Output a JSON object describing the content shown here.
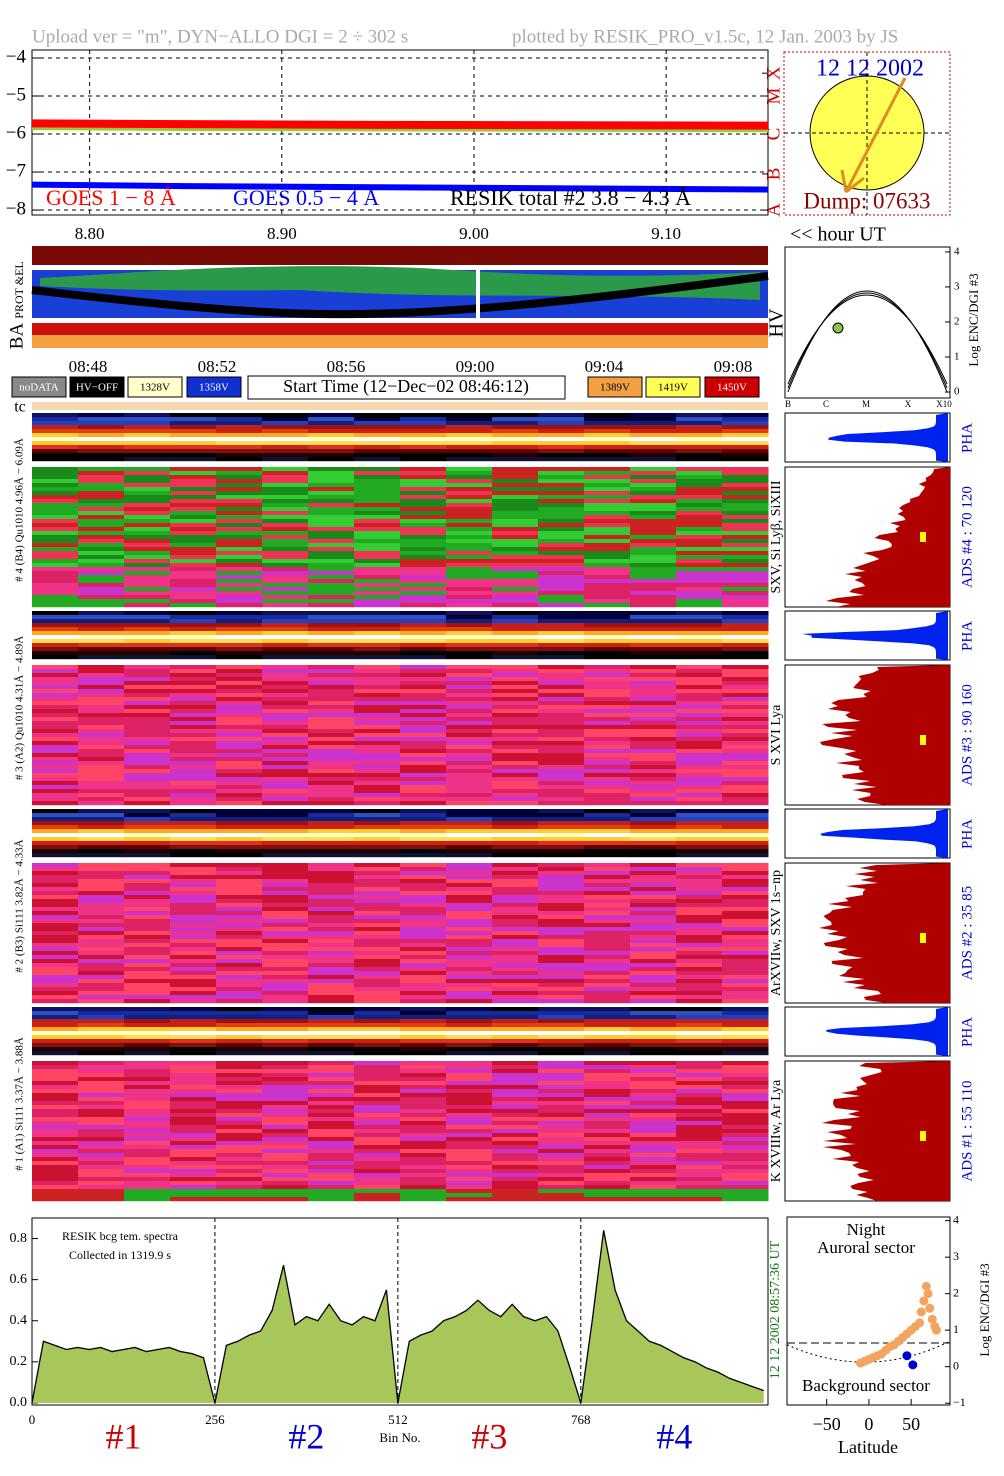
{
  "header": {
    "upload": "Upload ver = \"m\", DYN−ALLO DGI =   2 ÷ 302 s",
    "plotted": "plotted by RESIK_PRO_v1.5c, 12 Jan. 2003 by JS"
  },
  "chart_data": [
    {
      "type": "line",
      "xlabel": "<< hour UT",
      "x": [
        8.77,
        8.85,
        8.95,
        9.05,
        9.153
      ],
      "series": [
        {
          "name": "GOES 1 − 8 Å",
          "color": "#ff0000",
          "legend_color": "#ff0000",
          "values": [
            -5.72,
            -5.74,
            -5.76,
            -5.77,
            -5.78
          ]
        },
        {
          "name": "GOES 0.5 − 4 Å",
          "color": "#0000ff",
          "legend_color": "#0000ff",
          "values": [
            -7.33,
            -7.37,
            -7.4,
            -7.43,
            -7.46
          ]
        },
        {
          "name": "RESIK total #2  3.8 − 4.3 Å",
          "color": "#9acd32",
          "legend_color": "#000000",
          "values": [
            -5.82,
            -5.84,
            -5.85,
            -5.86,
            -5.87
          ]
        }
      ],
      "xlim": [
        8.77,
        9.153
      ],
      "ylim": [
        -8.13,
        -3.79
      ],
      "xticks": [
        {
          "value": 8.8,
          "label": "8.80"
        },
        {
          "value": 8.9,
          "label": "8.90"
        },
        {
          "value": 9.0,
          "label": "9.00"
        },
        {
          "value": 9.1,
          "label": "9.10"
        }
      ],
      "yticks": [
        {
          "value": -4,
          "label": "−4"
        },
        {
          "value": -5,
          "label": "−5"
        },
        {
          "value": -6,
          "label": "−6"
        },
        {
          "value": -7,
          "label": "−7"
        },
        {
          "value": -8,
          "label": "−8"
        }
      ],
      "y2lim": [
        -8.13,
        -3.79
      ],
      "y2ticks": [
        {
          "value": -4.4,
          "label": "X"
        },
        {
          "value": -5,
          "label": "M"
        },
        {
          "value": -6,
          "label": "C"
        },
        {
          "value": -7.05,
          "label": "B"
        },
        {
          "value": -8,
          "label": "A"
        }
      ],
      "y2color": "#cc0000",
      "grid": true
    },
    {
      "type": "area",
      "title": "RESIK bcg tem. spectra",
      "subtitle": "Collected in  1319.9 s",
      "xlabel": "Bin No.",
      "date_label": "12 12 2002  08:57:36 UT",
      "x": [
        0,
        16,
        32,
        48,
        64,
        80,
        96,
        112,
        128,
        144,
        160,
        176,
        192,
        208,
        224,
        240,
        256,
        272,
        288,
        304,
        320,
        336,
        352,
        368,
        384,
        400,
        416,
        432,
        448,
        464,
        480,
        496,
        512,
        528,
        544,
        560,
        576,
        592,
        608,
        624,
        640,
        656,
        672,
        688,
        704,
        720,
        736,
        752,
        768,
        784,
        800,
        816,
        832,
        848,
        864,
        880,
        896,
        912,
        928,
        944,
        960,
        976,
        992,
        1008,
        1024
      ],
      "values": [
        0.0,
        0.3,
        0.28,
        0.26,
        0.27,
        0.26,
        0.27,
        0.25,
        0.26,
        0.27,
        0.25,
        0.26,
        0.27,
        0.25,
        0.24,
        0.22,
        0.0,
        0.28,
        0.3,
        0.33,
        0.35,
        0.45,
        0.67,
        0.38,
        0.42,
        0.4,
        0.48,
        0.4,
        0.38,
        0.42,
        0.4,
        0.55,
        0.0,
        0.3,
        0.33,
        0.35,
        0.4,
        0.42,
        0.45,
        0.5,
        0.45,
        0.42,
        0.48,
        0.42,
        0.4,
        0.42,
        0.35,
        0.18,
        0.0,
        0.4,
        0.84,
        0.55,
        0.4,
        0.35,
        0.3,
        0.28,
        0.25,
        0.22,
        0.2,
        0.17,
        0.15,
        0.12,
        0.1,
        0.08,
        0.06
      ],
      "color": "#a8c65a",
      "line_color": "#000000",
      "xlim": [
        0,
        1030
      ],
      "ylim": [
        -0.01,
        0.9
      ],
      "xticks": [
        0,
        256,
        512,
        768
      ],
      "yticks": [
        {
          "value": 0,
          "label": "0.0"
        },
        0.2,
        0.4,
        0.6,
        0.8
      ],
      "sections": [
        {
          "label": "#1",
          "color": "#cc0000"
        },
        {
          "label": "#2",
          "color": "#0000cc"
        },
        {
          "label": "#3",
          "color": "#cc0000"
        },
        {
          "label": "#4",
          "color": "#0000cc"
        }
      ]
    },
    {
      "type": "scatter",
      "xlabel": "Latitude",
      "ylabel": "Log ENC/DGI #3",
      "notes": [
        "Night",
        "Auroral sector",
        "Background sector"
      ],
      "series": [
        {
          "color": "#f4a460",
          "x": [
            -10,
            -5,
            0,
            5,
            10,
            15,
            20,
            25,
            30,
            35,
            40,
            45,
            50,
            55,
            60,
            62,
            65,
            68,
            70,
            72,
            75,
            78,
            80
          ],
          "values": [
            0.1,
            0.15,
            0.2,
            0.25,
            0.3,
            0.35,
            0.45,
            0.55,
            0.6,
            0.7,
            0.8,
            0.9,
            1.0,
            1.1,
            1.2,
            1.5,
            1.8,
            2.2,
            2.0,
            1.6,
            1.3,
            1.1,
            1.0
          ]
        },
        {
          "color": "#0000cc",
          "x": [
            45,
            52
          ],
          "values": [
            0.3,
            0.05
          ]
        }
      ],
      "xlim": [
        -97,
        96
      ],
      "ylim": [
        -1.05,
        4.1
      ],
      "xticks": [
        {
          "value": -50,
          "label": "−50"
        },
        0,
        50
      ],
      "yticks": [
        {
          "value": -1,
          "label": "−1"
        },
        0,
        1,
        2,
        3,
        4
      ]
    }
  ],
  "sun": {
    "date": "12 12 2002",
    "dump": "Dump: 07633"
  },
  "strip_labels": {
    "prot": "PROT &EL",
    "ba": "BA"
  },
  "time_ticks": [
    "08:48",
    "08:52",
    "08:56",
    "09:00",
    "09:04",
    "09:08"
  ],
  "hv_legend": [
    {
      "label": "noDATA",
      "color": "#888888"
    },
    {
      "label": "HV−OFF",
      "color": "#000000"
    },
    {
      "label": "1328V",
      "color": "#ffffcc"
    },
    {
      "label": "1358V",
      "color": "#1030d0"
    },
    {
      "label": "1389V",
      "color": "#f4a040"
    },
    {
      "label": "1419V",
      "color": "#ffff55"
    },
    {
      "label": "1450V",
      "color": "#cc0000"
    }
  ],
  "start_time": "Start Time (12−Dec−02 08:46:12)",
  "hv_panel": {
    "label": "HV",
    "axis_label": "Log ENC/DGI #3",
    "ylim": [
      -0.17,
      4.14
    ],
    "yticks": [
      0,
      1,
      2,
      3,
      4
    ],
    "xlabels": [
      "B",
      "C",
      "M",
      "X",
      "X10"
    ]
  },
  "tc": "tc",
  "detectors": [
    {
      "label": "# 4 (B4) Qu1010 4.96Å − 6.09Å",
      "lines": "SXV, Si Lyβ, SiXIII",
      "pha": "PHA",
      "ads": "ADS #4 :   70 120"
    },
    {
      "label": "# 3 (A2) Qu1010 4.31Å − 4.89Å",
      "lines": "S XVI Lya",
      "pha": "PHA",
      "ads": "ADS #3 :   90 160"
    },
    {
      "label": "# 2 (B3) Si111 3.82Å − 4.33Å",
      "lines": "ArXVIIw, SXV 1s−np",
      "pha": "PHA",
      "ads": "ADS #2 :   35 85"
    },
    {
      "label": "# 1 (A1) Si111 3.37Å − 3.88Å",
      "lines": "K XVIIIw, Ar Lya",
      "pha": "PHA",
      "ads": "ADS #1 :   55 110"
    }
  ]
}
